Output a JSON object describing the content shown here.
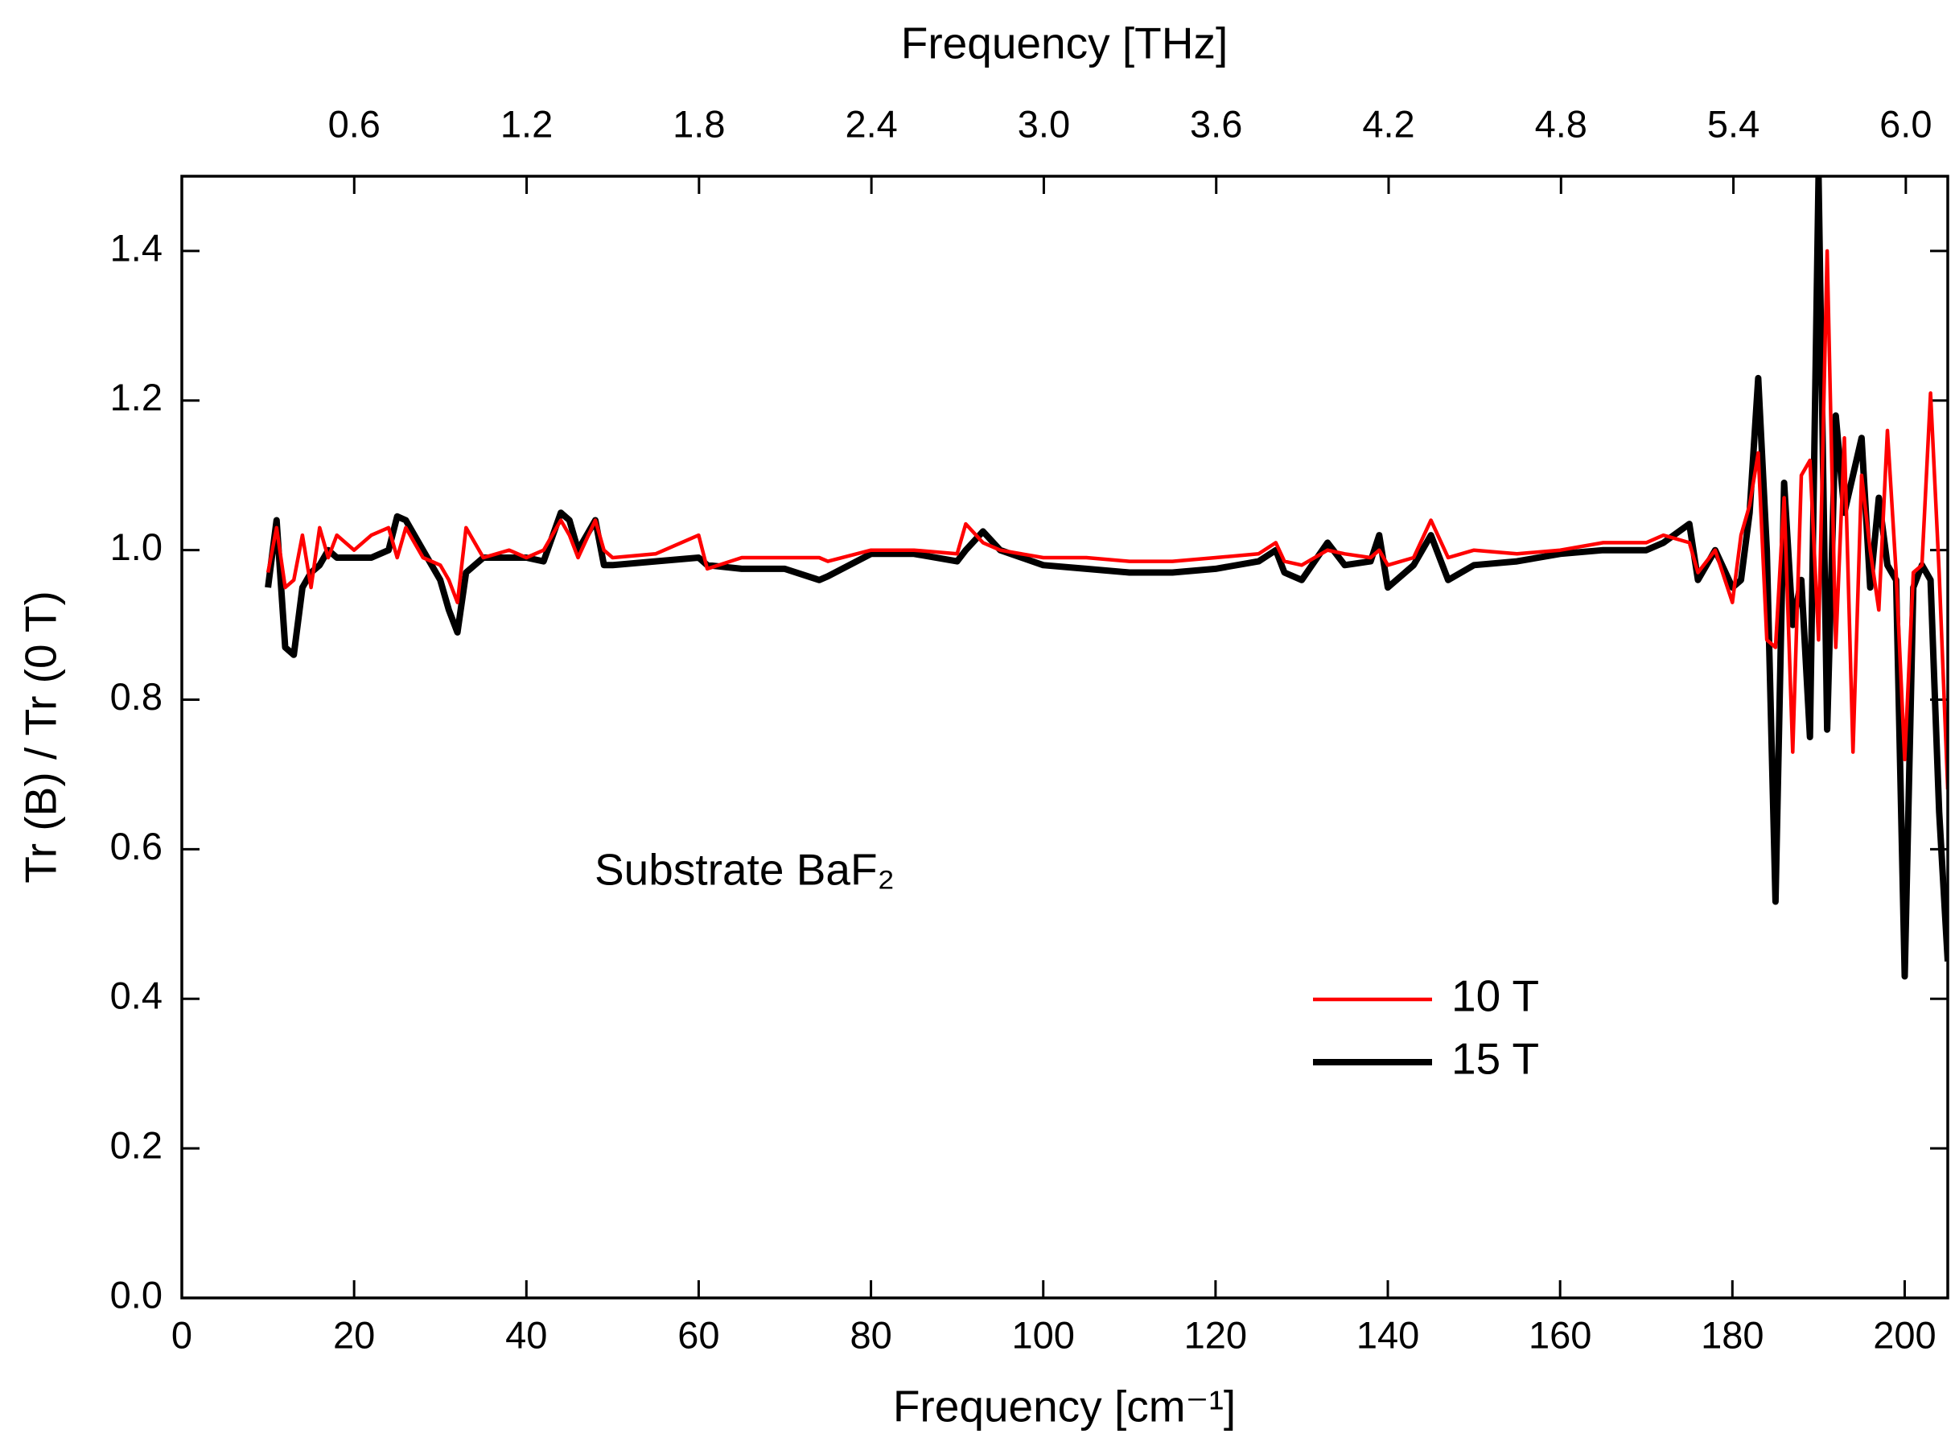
{
  "chart_data": {
    "type": "line",
    "xlabel": "Frequency [cm⁻¹]",
    "ylabel": "Tr (B) / Tr (0 T)",
    "x2label": "Frequency [THz]",
    "annotation": "Substrate BaF₂",
    "xlim": [
      0,
      205
    ],
    "xticks": [
      0,
      20,
      40,
      60,
      80,
      100,
      120,
      140,
      160,
      180,
      200
    ],
    "x2lim": [
      0,
      6.146
    ],
    "x2ticks": [
      0.6,
      1.2,
      1.8,
      2.4,
      {
        "value": 3.0,
        "label": "3.0"
      },
      3.6,
      4.2,
      4.8,
      5.4,
      {
        "value": 6.0,
        "label": "6.0"
      }
    ],
    "ylim": [
      0,
      1.5
    ],
    "yticks": [
      {
        "value": 0.0,
        "label": "0.0"
      },
      0.2,
      0.4,
      0.6,
      0.8,
      {
        "value": 1.0,
        "label": "1.0"
      },
      1.2,
      1.4
    ],
    "legend": "lower right",
    "x": [
      10,
      11,
      12,
      13,
      14,
      15,
      16,
      17,
      18,
      20,
      22,
      24,
      25,
      26,
      28,
      30,
      31,
      32,
      33,
      35,
      38,
      40,
      42,
      44,
      45,
      46,
      48,
      49,
      50,
      55,
      60,
      61,
      65,
      70,
      74,
      75,
      80,
      85,
      90,
      91,
      93,
      95,
      100,
      105,
      110,
      115,
      120,
      125,
      127,
      128,
      130,
      133,
      135,
      138,
      139,
      140,
      143,
      145,
      147,
      150,
      155,
      160,
      165,
      170,
      172,
      175,
      176,
      178,
      180,
      181,
      182,
      183,
      184,
      185,
      186,
      187,
      188,
      189,
      190,
      191,
      192,
      193,
      194,
      195,
      196,
      197,
      198,
      199,
      200,
      201,
      202,
      203,
      204,
      205
    ],
    "series": [
      {
        "name": "10 T",
        "color": "#ff0000",
        "values": [
          0.97,
          1.03,
          0.95,
          0.96,
          1.02,
          0.95,
          1.03,
          0.99,
          1.02,
          1.0,
          1.02,
          1.03,
          0.99,
          1.03,
          0.99,
          0.98,
          0.96,
          0.93,
          1.03,
          0.99,
          1.0,
          0.99,
          1.0,
          1.04,
          1.02,
          0.99,
          1.04,
          1.0,
          0.99,
          0.995,
          1.02,
          0.975,
          0.99,
          0.99,
          0.99,
          0.985,
          1.0,
          1.0,
          0.995,
          1.035,
          1.01,
          1.0,
          0.99,
          0.99,
          0.985,
          0.985,
          0.99,
          0.995,
          1.01,
          0.985,
          0.98,
          1.0,
          0.995,
          0.99,
          1.0,
          0.98,
          0.99,
          1.04,
          0.99,
          1.0,
          0.995,
          1.0,
          1.01,
          1.01,
          1.02,
          1.01,
          0.97,
          1.0,
          0.93,
          1.02,
          1.06,
          1.13,
          0.88,
          0.87,
          1.07,
          0.73,
          1.1,
          1.12,
          0.88,
          1.4,
          0.87,
          1.15,
          0.73,
          1.1,
          1.0,
          0.92,
          1.16,
          0.97,
          0.72,
          0.97,
          0.98,
          1.21,
          0.97,
          0.68
        ]
      },
      {
        "name": "15 T",
        "color": "#000000",
        "values": [
          0.95,
          1.04,
          0.87,
          0.86,
          0.95,
          0.97,
          0.98,
          1.0,
          0.99,
          0.99,
          0.99,
          1.0,
          1.045,
          1.04,
          1.0,
          0.96,
          0.92,
          0.89,
          0.97,
          0.99,
          0.99,
          0.99,
          0.985,
          1.05,
          1.04,
          1.0,
          1.04,
          0.98,
          0.98,
          0.985,
          0.99,
          0.98,
          0.975,
          0.975,
          0.96,
          0.965,
          0.995,
          0.995,
          0.985,
          1.0,
          1.025,
          1.0,
          0.98,
          0.975,
          0.97,
          0.97,
          0.975,
          0.985,
          1.0,
          0.97,
          0.96,
          1.01,
          0.98,
          0.985,
          1.02,
          0.95,
          0.98,
          1.02,
          0.96,
          0.98,
          0.985,
          0.995,
          1.0,
          1.0,
          1.01,
          1.035,
          0.96,
          1.0,
          0.95,
          0.96,
          1.05,
          1.23,
          1.0,
          0.53,
          1.09,
          0.9,
          0.96,
          0.75,
          1.5,
          0.76,
          1.18,
          1.05,
          1.1,
          1.15,
          0.95,
          1.07,
          0.98,
          0.96,
          0.43,
          0.95,
          0.98,
          0.96,
          0.65,
          0.45
        ]
      }
    ]
  }
}
